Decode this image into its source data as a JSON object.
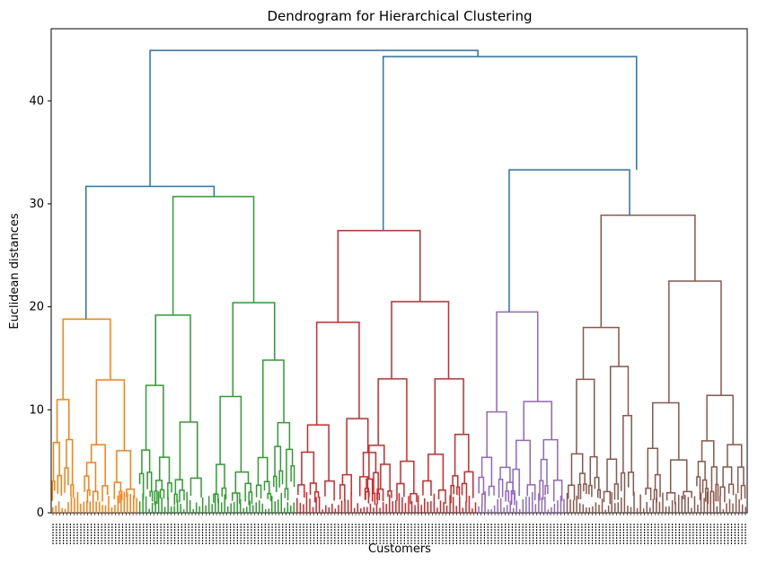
{
  "chart_data": {
    "type": "dendrogram",
    "title": "Dendrogram for Hierarchical Clustering",
    "xlabel": "Customers",
    "ylabel": "Euclidean distances",
    "ylim": [
      0,
      47
    ],
    "yticks": [
      0,
      10,
      20,
      30,
      40
    ],
    "grid": false,
    "link_color_above_threshold": "#1f77b4",
    "clusters": [
      {
        "color": "#ff7f0e",
        "x_range": [
          0,
          0.125
        ],
        "top_merge_height": 18.8,
        "sub_merges": [
          {
            "x": 0.017,
            "height": 11.0
          },
          {
            "x": 0.085,
            "height": 12.9
          }
        ]
      },
      {
        "color": "#2ca02c",
        "x_range": [
          0.125,
          0.351
        ],
        "top_merge_height": 30.7,
        "sub_merges": [
          {
            "x": 0.175,
            "height": 19.2
          },
          {
            "x": 0.291,
            "height": 20.4
          }
        ]
      },
      {
        "color": "#d62728",
        "x_range": [
          0.351,
          0.612
        ],
        "top_merge_height": 27.4,
        "sub_merges": [
          {
            "x": 0.412,
            "height": 18.5
          },
          {
            "x": 0.53,
            "height": 20.5
          }
        ]
      },
      {
        "color": "#9467bd",
        "x_range": [
          0.612,
          0.739
        ],
        "top_merge_height": 19.5,
        "sub_merges": [
          {
            "x": 0.64,
            "height": 9.8
          },
          {
            "x": 0.699,
            "height": 10.8
          }
        ]
      },
      {
        "color": "#8c564b",
        "x_range": [
          0.739,
          1.0
        ],
        "top_merge_height": 28.9,
        "sub_merges": [
          {
            "x": 0.79,
            "height": 18.0
          },
          {
            "x": 0.925,
            "height": 22.5
          }
        ]
      }
    ],
    "upper_links": [
      {
        "left_x": 0.05,
        "right_x": 0.234,
        "height": 31.7,
        "left_from": 18.8,
        "right_from": 30.7
      },
      {
        "left_x": 0.477,
        "right_x": 0.841,
        "height": 44.3,
        "left_from": 27.4,
        "right_from": 33.3
      },
      {
        "left_x": 0.658,
        "right_x": 0.831,
        "height": 33.3,
        "left_from": 19.5,
        "right_from": 28.9
      },
      {
        "left_x": 0.142,
        "right_x": 0.613,
        "height": 44.9,
        "left_from": 31.7,
        "right_from": 44.3
      }
    ]
  }
}
